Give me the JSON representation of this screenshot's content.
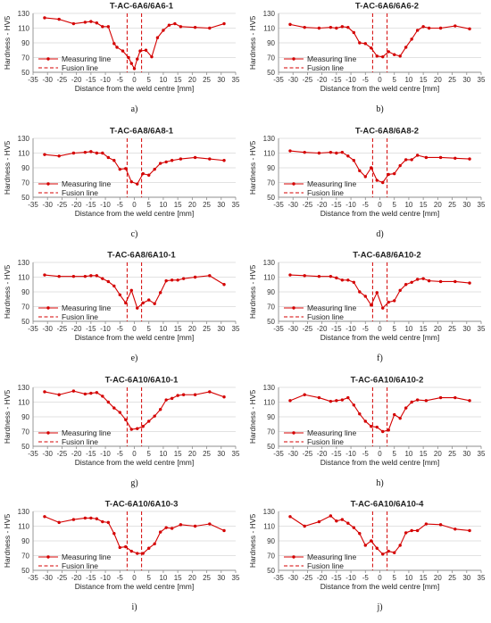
{
  "colors": {
    "line": "#d40000",
    "grid": "#d9d9d9",
    "axis": "#8c8c8c"
  },
  "chart_data": [
    {
      "type": "line",
      "caption": "a)",
      "title": "T-AC-6A6/6A6-1",
      "xlabel": "Distance from the weld centre [mm]",
      "ylabel": "Hardness - HV5",
      "xlim": [
        -35,
        35
      ],
      "ylim": [
        50,
        130
      ],
      "xticks": [
        -35,
        -30,
        -25,
        -20,
        -15,
        -10,
        -5,
        0,
        5,
        10,
        15,
        20,
        25,
        30,
        35
      ],
      "yticks": [
        50,
        70,
        90,
        110,
        130
      ],
      "series": [
        {
          "name": "Measuring line",
          "x": [
            -31,
            -26,
            -21,
            -17,
            -15,
            -13,
            -11,
            -9,
            -7,
            -6,
            -4,
            -2,
            -1,
            0,
            1,
            2,
            4,
            6,
            8,
            10,
            12,
            14,
            16,
            21,
            26,
            31
          ],
          "y": [
            124,
            122,
            116,
            118,
            119,
            117,
            112,
            112,
            89,
            84,
            79,
            70,
            62,
            55,
            68,
            79,
            80,
            71,
            97,
            107,
            114,
            116,
            112,
            111,
            110,
            116
          ]
        }
      ],
      "fusion_lines": [
        -2.5,
        2.5
      ],
      "legend": [
        "Measuring line",
        "Fusion line"
      ],
      "legend_position": "bottom-left",
      "grid": true
    },
    {
      "type": "line",
      "caption": "b)",
      "title": "T-AC-6A6/6A6-2",
      "xlabel": "Distance from the weld centre [mm]",
      "ylabel": "Hardness - HV5",
      "xlim": [
        -35,
        35
      ],
      "ylim": [
        50,
        130
      ],
      "xticks": [
        -35,
        -30,
        -25,
        -20,
        -15,
        -10,
        -5,
        0,
        5,
        10,
        15,
        20,
        25,
        30,
        35
      ],
      "yticks": [
        50,
        70,
        90,
        110,
        130
      ],
      "series": [
        {
          "name": "Measuring line",
          "x": [
            -31,
            -26,
            -21,
            -17,
            -15,
            -13,
            -11,
            -9,
            -7,
            -5,
            -3,
            -1,
            1,
            3,
            5,
            7,
            9,
            11,
            13,
            15,
            17,
            21,
            26,
            31
          ],
          "y": [
            115,
            111,
            110,
            111,
            110,
            112,
            111,
            104,
            90,
            89,
            83,
            72,
            71,
            78,
            74,
            72,
            84,
            95,
            107,
            112,
            110,
            110,
            113,
            109
          ]
        }
      ],
      "fusion_lines": [
        -2.5,
        2.5
      ],
      "legend": [
        "Measuring line",
        "Fusion line"
      ],
      "legend_position": "bottom-left",
      "grid": true
    },
    {
      "type": "line",
      "caption": "c)",
      "title": "T-AC-6A8/6A8-1",
      "xlabel": "Distance from the weld centre [mm]",
      "ylabel": "Hardness - HV5",
      "xlim": [
        -35,
        35
      ],
      "ylim": [
        50,
        130
      ],
      "xticks": [
        -35,
        -30,
        -25,
        -20,
        -15,
        -10,
        -5,
        0,
        5,
        10,
        15,
        20,
        25,
        30,
        35
      ],
      "yticks": [
        50,
        70,
        90,
        110,
        130
      ],
      "series": [
        {
          "name": "Measuring line",
          "x": [
            -31,
            -26,
            -21,
            -17,
            -15,
            -13,
            -11,
            -9,
            -7,
            -5,
            -3,
            -1,
            1,
            3,
            5,
            7,
            9,
            11,
            13,
            16,
            21,
            26,
            31
          ],
          "y": [
            108,
            106,
            110,
            111,
            112,
            110,
            110,
            104,
            100,
            88,
            89,
            71,
            68,
            82,
            80,
            88,
            96,
            98,
            100,
            102,
            104,
            102,
            100
          ]
        }
      ],
      "fusion_lines": [
        -2.5,
        2.5
      ],
      "legend": [
        "Measuring line",
        "Fusion line"
      ],
      "legend_position": "bottom-left",
      "grid": true
    },
    {
      "type": "line",
      "caption": "d)",
      "title": "T-AC-6A8/6A8-2",
      "xlabel": "Distance from the weld centre [mm]",
      "ylabel": "Hardness - HV5",
      "xlim": [
        -35,
        35
      ],
      "ylim": [
        50,
        130
      ],
      "xticks": [
        -35,
        -30,
        -25,
        -20,
        -15,
        -10,
        -5,
        0,
        5,
        10,
        15,
        20,
        25,
        30,
        35
      ],
      "yticks": [
        50,
        70,
        90,
        110,
        130
      ],
      "series": [
        {
          "name": "Measuring line",
          "x": [
            -31,
            -26,
            -21,
            -17,
            -15,
            -13,
            -11,
            -9,
            -7,
            -5,
            -3,
            -1,
            1,
            3,
            5,
            7,
            9,
            11,
            13,
            16,
            21,
            26,
            31
          ],
          "y": [
            113,
            111,
            110,
            111,
            110,
            111,
            106,
            100,
            86,
            78,
            90,
            73,
            70,
            81,
            82,
            93,
            101,
            101,
            107,
            104,
            104,
            103,
            102
          ]
        }
      ],
      "fusion_lines": [
        -2.5,
        2.5
      ],
      "legend": [
        "Measuring line",
        "Fusion line"
      ],
      "legend_position": "bottom-left",
      "grid": true
    },
    {
      "type": "line",
      "caption": "e)",
      "title": "T-AC-6A8/6A10-1",
      "xlabel": "Distance from the weld centre [mm]",
      "ylabel": "Hardness - HV5",
      "xlim": [
        -35,
        35
      ],
      "ylim": [
        50,
        130
      ],
      "xticks": [
        -35,
        -30,
        -25,
        -20,
        -15,
        -10,
        -5,
        0,
        5,
        10,
        15,
        20,
        25,
        30,
        35
      ],
      "yticks": [
        50,
        70,
        90,
        110,
        130
      ],
      "series": [
        {
          "name": "Measuring line",
          "x": [
            -31,
            -26,
            -21,
            -17,
            -15,
            -13,
            -11,
            -9,
            -7,
            -5,
            -3,
            -1,
            1,
            3,
            5,
            7,
            9,
            11,
            13,
            15,
            17,
            21,
            26,
            31
          ],
          "y": [
            113,
            111,
            111,
            111,
            112,
            112,
            108,
            104,
            98,
            86,
            75,
            92,
            68,
            75,
            79,
            74,
            89,
            105,
            106,
            106,
            108,
            110,
            112,
            100
          ]
        }
      ],
      "fusion_lines": [
        -2.5,
        2.5
      ],
      "legend": [
        "Measuring line",
        "Fusion line"
      ],
      "legend_position": "bottom-left",
      "grid": true
    },
    {
      "type": "line",
      "caption": "f)",
      "title": "T-AC-6A8/6A10-2",
      "xlabel": "Distance from the weld centre [mm]",
      "ylabel": "Hardness - HV5",
      "xlim": [
        -35,
        35
      ],
      "ylim": [
        50,
        130
      ],
      "xticks": [
        -35,
        -30,
        -25,
        -20,
        -15,
        -10,
        -5,
        0,
        5,
        10,
        15,
        20,
        25,
        30,
        35
      ],
      "yticks": [
        50,
        70,
        90,
        110,
        130
      ],
      "series": [
        {
          "name": "Measuring line",
          "x": [
            -31,
            -26,
            -21,
            -17,
            -15,
            -13,
            -11,
            -9,
            -7,
            -5,
            -3,
            -1,
            1,
            3,
            5,
            7,
            9,
            11,
            13,
            15,
            17,
            21,
            26,
            31
          ],
          "y": [
            113,
            112,
            111,
            111,
            109,
            106,
            106,
            103,
            90,
            84,
            72,
            89,
            68,
            76,
            78,
            92,
            100,
            103,
            107,
            108,
            105,
            104,
            104,
            102
          ]
        }
      ],
      "fusion_lines": [
        -2.5,
        2.5
      ],
      "legend": [
        "Measuring line",
        "Fusion line"
      ],
      "legend_position": "bottom-left",
      "grid": true
    },
    {
      "type": "line",
      "caption": "g)",
      "title": "T-AC-6A10/6A10-1",
      "xlabel": "Distance from the weld centre [mm]",
      "ylabel": "Hardness - HV5",
      "xlim": [
        -35,
        35
      ],
      "ylim": [
        50,
        130
      ],
      "xticks": [
        -35,
        -30,
        -25,
        -20,
        -15,
        -10,
        -5,
        0,
        5,
        10,
        15,
        20,
        25,
        30,
        35
      ],
      "yticks": [
        50,
        70,
        90,
        110,
        130
      ],
      "series": [
        {
          "name": "Measuring line",
          "x": [
            -31,
            -26,
            -21,
            -17,
            -15,
            -13,
            -11,
            -9,
            -7,
            -5,
            -3,
            -1,
            1,
            3,
            5,
            7,
            9,
            11,
            13,
            15,
            17,
            21,
            26,
            31
          ],
          "y": [
            124,
            120,
            125,
            121,
            122,
            123,
            118,
            110,
            102,
            96,
            86,
            73,
            74,
            77,
            84,
            91,
            100,
            113,
            115,
            119,
            120,
            120,
            124,
            117
          ]
        }
      ],
      "fusion_lines": [
        -2.5,
        2.5
      ],
      "legend": [
        "Measuring line",
        "Fusion line"
      ],
      "legend_position": "bottom-left",
      "grid": true
    },
    {
      "type": "line",
      "caption": "h)",
      "title": "T-AC-6A10/6A10-2",
      "xlabel": "Distance from the weld centre [mm]",
      "ylabel": "Hardness - HV5",
      "xlim": [
        -35,
        35
      ],
      "ylim": [
        50,
        130
      ],
      "xticks": [
        -35,
        -30,
        -25,
        -20,
        -15,
        -10,
        -5,
        0,
        5,
        10,
        15,
        20,
        25,
        30,
        35
      ],
      "yticks": [
        50,
        70,
        90,
        110,
        130
      ],
      "series": [
        {
          "name": "Measuring line",
          "x": [
            -31,
            -26,
            -21,
            -17,
            -15,
            -13,
            -11,
            -9,
            -7,
            -5,
            -3,
            -1,
            1,
            3,
            5,
            7,
            9,
            11,
            13,
            16,
            21,
            26,
            31
          ],
          "y": [
            112,
            120,
            116,
            111,
            112,
            113,
            116,
            106,
            94,
            84,
            77,
            76,
            70,
            72,
            93,
            88,
            102,
            110,
            113,
            112,
            116,
            116,
            112
          ]
        }
      ],
      "fusion_lines": [
        -2.5,
        2.5
      ],
      "legend": [
        "Measuring line",
        "Fusion line"
      ],
      "legend_position": "bottom-left",
      "grid": true
    },
    {
      "type": "line",
      "caption": "i)",
      "title": "T-AC-6A10/6A10-3",
      "xlabel": "Distance from the weld centre [mm]",
      "ylabel": "Hardness - HV5",
      "xlim": [
        -35,
        35
      ],
      "ylim": [
        50,
        130
      ],
      "xticks": [
        -35,
        -30,
        -25,
        -20,
        -15,
        -10,
        -5,
        0,
        5,
        10,
        15,
        20,
        25,
        30,
        35
      ],
      "yticks": [
        50,
        70,
        90,
        110,
        130
      ],
      "series": [
        {
          "name": "Measuring line",
          "x": [
            -31,
            -26,
            -21,
            -17,
            -15,
            -13,
            -11,
            -9,
            -7,
            -5,
            -3,
            -1,
            1,
            3,
            5,
            7,
            9,
            11,
            13,
            16,
            21,
            26,
            31
          ],
          "y": [
            123,
            115,
            119,
            121,
            121,
            120,
            116,
            115,
            100,
            81,
            82,
            76,
            73,
            73,
            80,
            86,
            102,
            108,
            107,
            112,
            110,
            113,
            104
          ]
        }
      ],
      "fusion_lines": [
        -2.5,
        2.5
      ],
      "legend": [
        "Measuring line",
        "Fusion line"
      ],
      "legend_position": "bottom-left",
      "grid": true
    },
    {
      "type": "line",
      "caption": "j)",
      "title": "T-AC-6A10/6A10-4",
      "xlabel": "Distance from the weld centre [mm]",
      "ylabel": "Hardness - HV5",
      "xlim": [
        -35,
        35
      ],
      "ylim": [
        50,
        130
      ],
      "xticks": [
        -35,
        -30,
        -25,
        -20,
        -15,
        -10,
        -5,
        0,
        5,
        10,
        15,
        20,
        25,
        30,
        35
      ],
      "yticks": [
        50,
        70,
        90,
        110,
        130
      ],
      "series": [
        {
          "name": "Measuring line",
          "x": [
            -31,
            -26,
            -21,
            -17,
            -15,
            -13,
            -11,
            -9,
            -7,
            -5,
            -3,
            -1,
            1,
            3,
            5,
            7,
            9,
            11,
            13,
            16,
            21,
            26,
            31
          ],
          "y": [
            123,
            110,
            116,
            124,
            117,
            119,
            114,
            108,
            100,
            84,
            90,
            80,
            72,
            76,
            74,
            84,
            101,
            104,
            104,
            113,
            112,
            106,
            104
          ]
        }
      ],
      "fusion_lines": [
        -2.5,
        2.5
      ],
      "legend": [
        "Measuring line",
        "Fusion line"
      ],
      "legend_position": "bottom-left",
      "grid": true
    }
  ]
}
